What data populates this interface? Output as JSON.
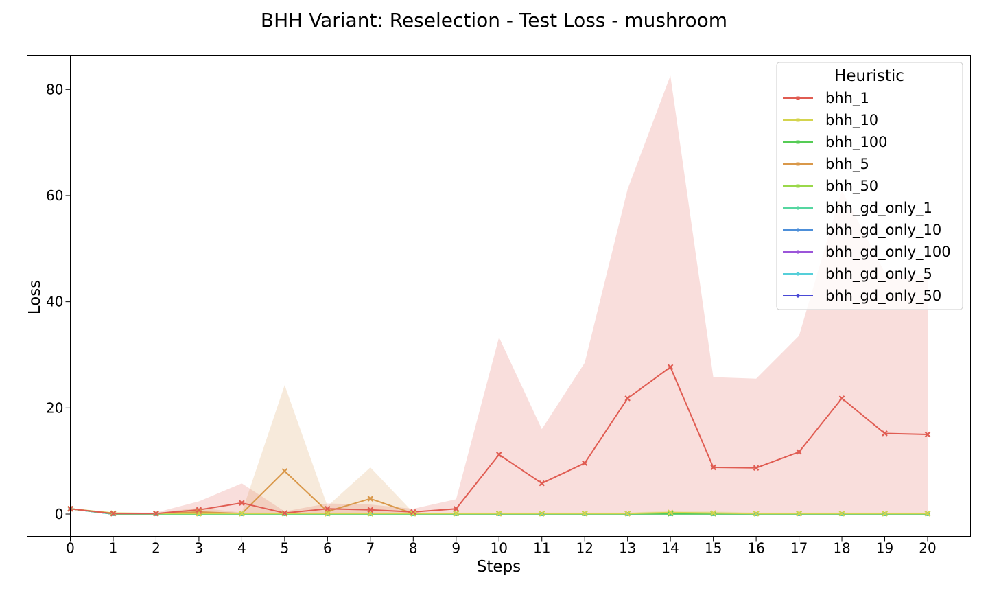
{
  "chart_data": {
    "type": "line",
    "title": "BHH Variant: Reselection - Test Loss - mushroom",
    "xlabel": "Steps",
    "ylabel": "Loss",
    "x": [
      0,
      1,
      2,
      3,
      4,
      5,
      6,
      7,
      8,
      9,
      10,
      11,
      12,
      13,
      14,
      15,
      16,
      17,
      18,
      19,
      20
    ],
    "xlim": [
      0,
      20
    ],
    "ylim": [
      -4.2,
      86.5
    ],
    "yticks": [
      0,
      20,
      40,
      60,
      80
    ],
    "grid": false,
    "legend": {
      "title": "Heuristic",
      "placement": "top-right"
    },
    "series": [
      {
        "name": "bhh_1",
        "color": "#e05c52",
        "marker": "x",
        "values": [
          1.0,
          0.1,
          0.1,
          0.8,
          2.1,
          0.2,
          1.0,
          0.8,
          0.4,
          1.0,
          11.2,
          5.8,
          9.6,
          21.8,
          27.7,
          8.8,
          8.7,
          11.7,
          21.8,
          15.2,
          15.0
        ],
        "band_low": [
          0.9,
          0.0,
          0.0,
          0.0,
          0.0,
          0.0,
          0.0,
          0.0,
          0.0,
          0.0,
          0.0,
          0.0,
          0.0,
          0.0,
          0.0,
          0.0,
          0.0,
          0.0,
          0.0,
          0.0,
          0.0
        ],
        "band_high": [
          1.1,
          0.3,
          0.3,
          2.4,
          5.8,
          0.5,
          2.0,
          1.8,
          1.0,
          2.8,
          33.3,
          16.0,
          28.5,
          61.2,
          82.6,
          25.8,
          25.5,
          33.6,
          61.0,
          45.5,
          44.9
        ]
      },
      {
        "name": "bhh_10",
        "color": "#d4d44e",
        "marker": "x",
        "values": [
          1.0,
          0.2,
          0.1,
          0.1,
          0.1,
          0.1,
          0.1,
          0.1,
          0.1,
          0.1,
          0.1,
          0.1,
          0.1,
          0.1,
          0.3,
          0.2,
          0.1,
          0.1,
          0.1,
          0.1,
          0.1
        ],
        "band_low": [
          0.9,
          0.1,
          0.0,
          0.0,
          0.0,
          0.0,
          0.0,
          0.0,
          0.0,
          0.0,
          0.0,
          0.0,
          0.0,
          0.0,
          0.0,
          0.0,
          0.0,
          0.0,
          0.0,
          0.0,
          0.0
        ],
        "band_high": [
          1.1,
          0.3,
          0.2,
          0.3,
          0.3,
          0.3,
          0.3,
          0.3,
          0.3,
          0.3,
          0.3,
          0.3,
          0.3,
          0.3,
          0.6,
          0.5,
          0.3,
          0.3,
          0.3,
          0.3,
          0.3
        ]
      },
      {
        "name": "bhh_100",
        "color": "#55cc55",
        "marker": "x",
        "values": [
          1.0,
          0.1,
          0.1,
          0.1,
          0.1,
          0.1,
          0.1,
          0.1,
          0.1,
          0.1,
          0.1,
          0.1,
          0.1,
          0.1,
          0.1,
          0.1,
          0.1,
          0.1,
          0.1,
          0.1,
          0.1
        ],
        "band_low": [
          0.9,
          0.0,
          0.0,
          0.0,
          0.0,
          0.0,
          0.0,
          0.0,
          0.0,
          0.0,
          0.0,
          0.0,
          0.0,
          0.0,
          0.0,
          0.0,
          0.0,
          0.0,
          0.0,
          0.0,
          0.0
        ],
        "band_high": [
          1.1,
          0.2,
          0.2,
          0.2,
          0.2,
          0.2,
          0.2,
          0.2,
          0.2,
          0.2,
          0.2,
          0.2,
          0.2,
          0.2,
          0.2,
          0.2,
          0.2,
          0.2,
          0.2,
          0.2,
          0.2
        ]
      },
      {
        "name": "bhh_5",
        "color": "#d9984a",
        "marker": "x",
        "values": [
          1.0,
          0.1,
          0.1,
          0.4,
          0.1,
          8.1,
          0.5,
          2.9,
          0.1,
          0.1,
          0.1,
          0.1,
          0.1,
          0.1,
          0.1,
          0.1,
          0.1,
          0.1,
          0.1,
          0.1,
          0.1
        ],
        "band_low": [
          0.9,
          0.0,
          0.0,
          0.0,
          0.0,
          0.0,
          0.0,
          0.0,
          0.0,
          0.0,
          0.0,
          0.0,
          0.0,
          0.0,
          0.0,
          0.0,
          0.0,
          0.0,
          0.0,
          0.0,
          0.0
        ],
        "band_high": [
          1.1,
          0.2,
          0.2,
          1.2,
          0.3,
          24.3,
          1.5,
          8.8,
          0.3,
          0.2,
          0.2,
          0.2,
          0.2,
          0.2,
          0.2,
          0.2,
          0.2,
          0.2,
          0.2,
          0.2,
          0.2
        ]
      },
      {
        "name": "bhh_50",
        "color": "#9ad84a",
        "marker": "x",
        "values": [
          1.0,
          0.1,
          0.1,
          0.1,
          0.1,
          0.1,
          0.1,
          0.1,
          0.1,
          0.1,
          0.1,
          0.1,
          0.1,
          0.1,
          0.1,
          0.1,
          0.1,
          0.1,
          0.1,
          0.1,
          0.1
        ],
        "band_low": [
          0.9,
          0.0,
          0.0,
          0.0,
          0.0,
          0.0,
          0.0,
          0.0,
          0.0,
          0.0,
          0.0,
          0.0,
          0.0,
          0.0,
          0.0,
          0.0,
          0.0,
          0.0,
          0.0,
          0.0,
          0.0
        ],
        "band_high": [
          1.1,
          0.2,
          0.2,
          0.2,
          0.2,
          0.2,
          0.2,
          0.2,
          0.2,
          0.2,
          0.2,
          0.2,
          0.2,
          0.2,
          0.2,
          0.2,
          0.2,
          0.2,
          0.2,
          0.2,
          0.2
        ]
      },
      {
        "name": "bhh_gd_only_1",
        "color": "#55d6a0",
        "marker": "o",
        "values": [
          1.0,
          0.0,
          0.0,
          0.0,
          0.0,
          0.0,
          0.0,
          0.0,
          0.0,
          0.0,
          0.0,
          0.0,
          0.0,
          0.0,
          0.0,
          0.0,
          0.0,
          0.0,
          0.0,
          0.0,
          0.0
        ]
      },
      {
        "name": "bhh_gd_only_10",
        "color": "#4d8fd9",
        "marker": "o",
        "values": [
          1.0,
          0.0,
          0.0,
          0.0,
          0.0,
          0.0,
          0.0,
          0.0,
          0.0,
          0.0,
          0.0,
          0.0,
          0.0,
          0.0,
          0.0,
          0.0,
          0.0,
          0.0,
          0.0,
          0.0,
          0.0
        ]
      },
      {
        "name": "bhh_gd_only_100",
        "color": "#9b55d9",
        "marker": "o",
        "values": [
          1.0,
          0.0,
          0.0,
          0.0,
          0.0,
          0.0,
          0.0,
          0.0,
          0.0,
          0.0,
          0.0,
          0.0,
          0.0,
          0.0,
          0.0,
          0.0,
          0.0,
          0.0,
          0.0,
          0.0,
          0.0
        ]
      },
      {
        "name": "bhh_gd_only_5",
        "color": "#55cfd9",
        "marker": "o",
        "values": [
          1.0,
          0.0,
          0.0,
          0.0,
          0.0,
          0.0,
          0.0,
          0.0,
          0.0,
          0.0,
          0.0,
          0.0,
          0.0,
          0.0,
          0.0,
          0.0,
          0.0,
          0.0,
          0.0,
          0.0,
          0.0
        ]
      },
      {
        "name": "bhh_gd_only_50",
        "color": "#4a4ad6",
        "marker": "o",
        "values": [
          1.0,
          0.0,
          0.0,
          0.0,
          0.0,
          0.0,
          0.0,
          0.0,
          0.0,
          0.0,
          0.0,
          0.0,
          0.0,
          0.0,
          0.0,
          0.0,
          0.0,
          0.0,
          0.0,
          0.0,
          0.0
        ]
      }
    ]
  }
}
